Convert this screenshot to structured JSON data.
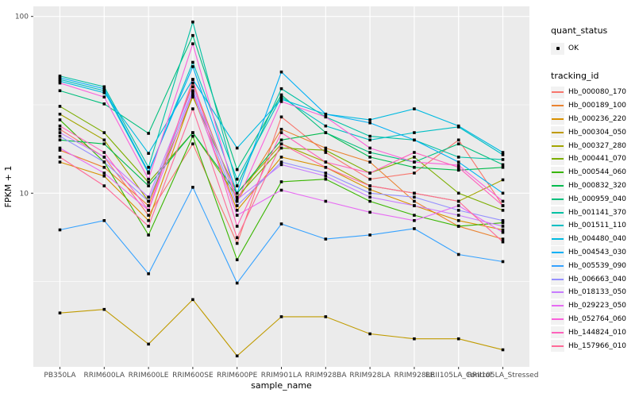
{
  "chart_data": {
    "type": "line",
    "title": "",
    "xlabel": "sample_name",
    "ylabel": "FPKM + 1",
    "y_scale": "log10",
    "ylim": [
      1.0,
      100
    ],
    "y_major_ticks": [
      100,
      10
    ],
    "y_major_tick_labels": [
      "100",
      "10"
    ],
    "y_minor_ticks": [
      31.62,
      3.162
    ],
    "grid": true,
    "legend_position": "right",
    "panel_bg": "#EBEBEB",
    "grid_color": "#FFFFFF",
    "axis_text_color": "#4D4D4D",
    "tick_color": "#333333",
    "point_color": "#000000",
    "categories": [
      "PB350LA",
      "RRIM600LA",
      "RRIM600LE",
      "RRIM600SE",
      "RRIM600PE",
      "RRIM901LA",
      "RRIM928BA",
      "RRIM928LA",
      "RRIM928LE",
      "RRII105LA_Control",
      "RRII105LA_Stressed"
    ],
    "series": [
      {
        "name": "Hb_000080_170",
        "color": "#F8766D",
        "values": [
          23,
          16,
          7.5,
          19,
          5.2,
          27,
          17,
          12,
          13,
          20,
          8.5
        ]
      },
      {
        "name": "Hb_000189_100",
        "color": "#EA8331",
        "values": [
          17.5,
          14,
          8.5,
          42,
          9,
          23,
          18,
          15,
          9,
          6.5,
          5.5
        ]
      },
      {
        "name": "Hb_000236_220",
        "color": "#D89000",
        "values": [
          15,
          12.5,
          7,
          36,
          8,
          16,
          14,
          10.5,
          8.5,
          7,
          6.2
        ]
      },
      {
        "name": "Hb_000304_050",
        "color": "#C09B00",
        "values": [
          2.1,
          2.2,
          1.4,
          2.5,
          1.2,
          2.0,
          2.0,
          1.6,
          1.5,
          1.5,
          1.3
        ]
      },
      {
        "name": "Hb_000327_280",
        "color": "#A3A500",
        "values": [
          28,
          20,
          9,
          35,
          10,
          19,
          15,
          11,
          10,
          9,
          11.9
        ]
      },
      {
        "name": "Hb_000441_070",
        "color": "#7CAE00",
        "values": [
          31,
          22,
          11.5,
          22,
          9.5,
          18,
          17.5,
          13,
          16,
          10,
          8
        ]
      },
      {
        "name": "Hb_000544_060",
        "color": "#39B600",
        "values": [
          26,
          15,
          5.8,
          21,
          4.2,
          11.6,
          12,
          9,
          7.5,
          6.5,
          6.8
        ]
      },
      {
        "name": "Hb_000832_320",
        "color": "#00BB4E",
        "values": [
          20,
          19,
          11,
          22,
          10,
          20,
          22,
          16,
          14,
          13.5,
          14
        ]
      },
      {
        "name": "Hb_000959_040",
        "color": "#00BF7D",
        "values": [
          38,
          32,
          21.8,
          78,
          13.6,
          36,
          22,
          17,
          15,
          19,
          14.5
        ]
      },
      {
        "name": "Hb_001141_370",
        "color": "#00C1A3",
        "values": [
          46,
          40,
          14,
          93,
          11,
          39,
          27,
          21,
          20,
          16,
          15.5
        ]
      },
      {
        "name": "Hb_001511_110",
        "color": "#00BFC4",
        "values": [
          44,
          38,
          13,
          55,
          12,
          35,
          24,
          20,
          22,
          23.7,
          16.5
        ]
      },
      {
        "name": "Hb_004480_040",
        "color": "#00BAE0",
        "values": [
          43,
          37,
          16.8,
          44,
          18,
          34,
          28,
          26,
          30,
          24,
          17
        ]
      },
      {
        "name": "Hb_004543_030",
        "color": "#00B0F6",
        "values": [
          45,
          39,
          13.2,
          52,
          10,
          48.5,
          28,
          25,
          20,
          15,
          10
        ]
      },
      {
        "name": "Hb_005539_090",
        "color": "#35A2FF",
        "values": [
          6.2,
          7.0,
          3.5,
          10.8,
          3.1,
          6.7,
          5.5,
          5.8,
          6.3,
          4.5,
          4.1
        ]
      },
      {
        "name": "Hb_006663_040",
        "color": "#9590FF",
        "values": [
          21,
          15,
          9,
          38,
          8.5,
          15,
          13,
          10,
          9.5,
          8,
          7
        ]
      },
      {
        "name": "Hb_018133_050",
        "color": "#C77CFF",
        "values": [
          22,
          16,
          9.5,
          40,
          9.2,
          14.5,
          12.5,
          9.5,
          8.5,
          7.5,
          6.5
        ]
      },
      {
        "name": "Hb_029223_050",
        "color": "#E76BF3",
        "values": [
          18,
          13,
          8,
          37,
          7.5,
          10.4,
          9,
          7.8,
          7,
          8.5,
          6
        ]
      },
      {
        "name": "Hb_052764_060",
        "color": "#FA62DB",
        "values": [
          42,
          35,
          12,
          70,
          9,
          33,
          27,
          18,
          15,
          14.4,
          9
        ]
      },
      {
        "name": "Hb_144824_010",
        "color": "#FF62BC",
        "values": [
          24,
          17,
          8,
          44,
          6.5,
          22,
          15,
          13,
          17,
          14,
          8.5
        ]
      },
      {
        "name": "Hb_157966_010",
        "color": "#FF6A98",
        "values": [
          16,
          11,
          6.5,
          30,
          5.6,
          19,
          14,
          11,
          10,
          9,
          5.3
        ]
      }
    ]
  },
  "legend": {
    "quant_title": "quant_status",
    "quant_items": [
      {
        "label": "OK",
        "symbol": "point"
      }
    ],
    "tracking_title": "tracking_id"
  }
}
